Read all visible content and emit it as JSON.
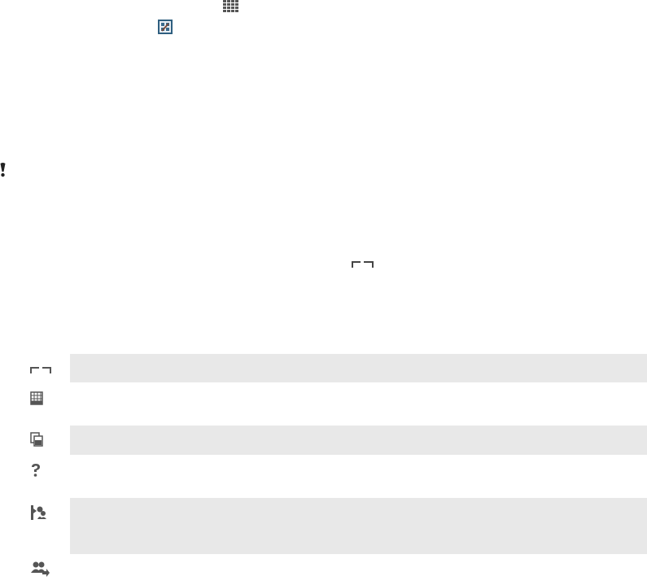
{
  "colors": {
    "icon": "#555555",
    "row_shade": "#e8e8e8",
    "settings_icon_bg": "#2f5f80"
  },
  "inline_icons": [
    "apps-grid-icon",
    "settings-app-icon",
    "warning-exclamation-icon",
    "recent-apps-bracket-icon"
  ],
  "table": {
    "rows": [
      {
        "icon": "recent-apps-bracket-icon",
        "shaded": true
      },
      {
        "icon": "calendar-grid-icon",
        "shaded": false
      },
      {
        "icon": "copy-documents-icon",
        "shaded": true
      },
      {
        "icon": "help-question-icon",
        "shaded": false
      },
      {
        "icon": "contact-settings-icon",
        "shaded": true
      },
      {
        "icon": "contacts-share-icon",
        "shaded": false
      }
    ]
  }
}
